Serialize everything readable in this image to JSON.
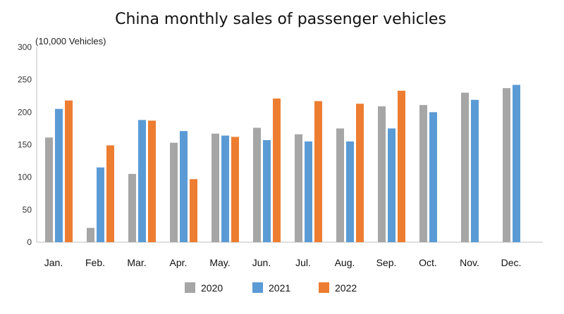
{
  "chart_data": {
    "type": "bar",
    "title": "China monthly sales of passenger vehicles",
    "ylabel": "(10,000 Vehicles)",
    "xlabel": "",
    "ylim": [
      0,
      300
    ],
    "yticks": [
      0,
      50,
      100,
      150,
      200,
      250,
      300
    ],
    "categories": [
      "Jan.",
      "Feb.",
      "Mar.",
      "Apr.",
      "May.",
      "Jun.",
      "Jul.",
      "Aug.",
      "Sep.",
      "Oct.",
      "Nov.",
      "Dec."
    ],
    "series": [
      {
        "name": "2020",
        "color": "#a6a6a6",
        "values": [
          161,
          22,
          105,
          153,
          167,
          176,
          166,
          175,
          209,
          211,
          230,
          237
        ]
      },
      {
        "name": "2021",
        "color": "#5b9bd5",
        "values": [
          205,
          115,
          188,
          171,
          164,
          157,
          155,
          155,
          175,
          200,
          219,
          242
        ]
      },
      {
        "name": "2022",
        "color": "#ed7d31",
        "values": [
          218,
          149,
          187,
          97,
          162,
          221,
          217,
          213,
          233,
          null,
          null,
          null
        ]
      }
    ],
    "legend_position": "bottom"
  }
}
